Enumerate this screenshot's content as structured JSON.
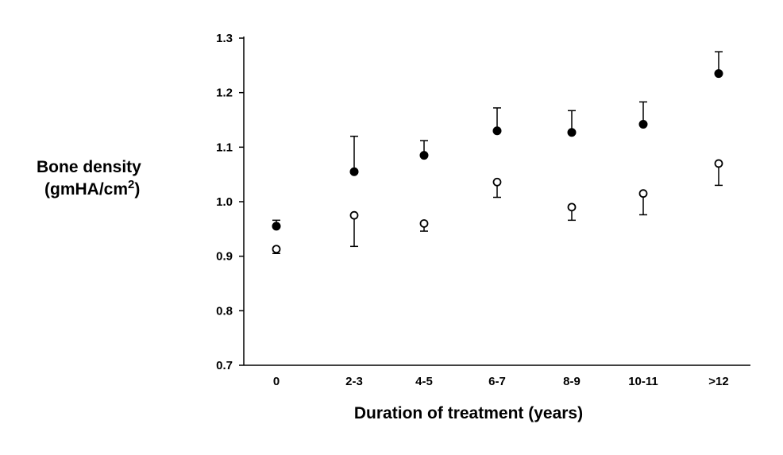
{
  "chart_data": {
    "type": "scatter",
    "title": "",
    "xlabel": "Duration of treatment (years)",
    "ylabel": {
      "line1": "Bone density",
      "line2_prefix": "(gmHA/cm",
      "line2_sup": "2",
      "line2_suffix": ")"
    },
    "categories": [
      "0",
      "2-3",
      "4-5",
      "6-7",
      "8-9",
      "10-11",
      ">12"
    ],
    "ylim": [
      0.7,
      1.3
    ],
    "yticks": [
      "0.7",
      "0.8",
      "0.9",
      "1.0",
      "1.1",
      "1.2",
      "1.3"
    ],
    "grid": false,
    "legend": "none",
    "series": [
      {
        "marker": "filled-circle",
        "values": [
          0.955,
          1.055,
          1.085,
          1.13,
          1.127,
          1.142,
          1.235
        ],
        "error_upper": [
          0.966,
          1.12,
          1.112,
          1.172,
          1.167,
          1.183,
          1.275
        ],
        "error_dir": "up"
      },
      {
        "marker": "open-circle",
        "values": [
          0.913,
          0.975,
          0.96,
          1.036,
          0.99,
          1.015,
          1.07
        ],
        "error_lower": [
          0.905,
          0.918,
          0.946,
          1.008,
          0.966,
          0.976,
          1.03
        ],
        "error_dir": "down"
      }
    ]
  }
}
